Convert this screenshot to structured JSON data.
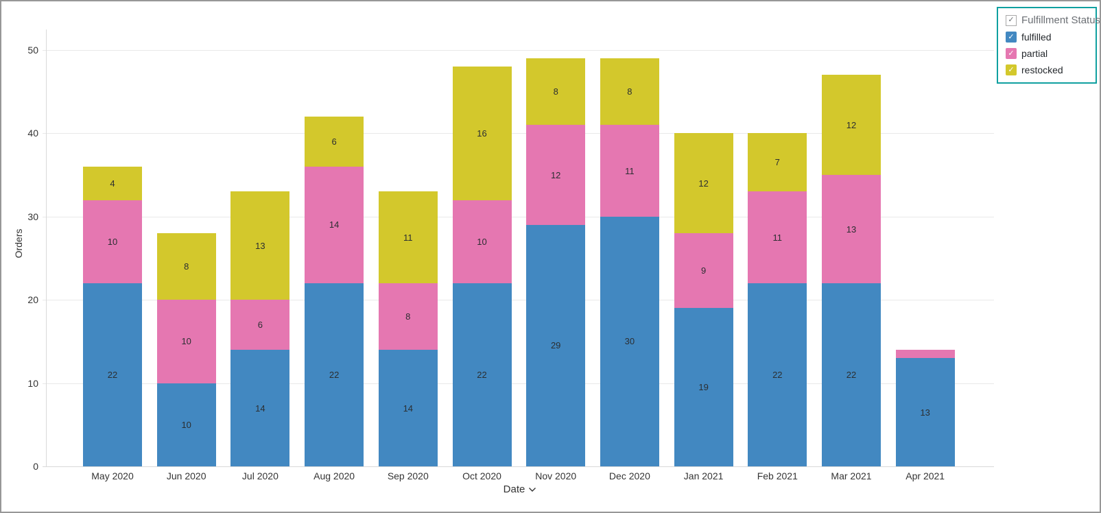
{
  "legend": {
    "title": "Fulfillment Status",
    "checkmark": "✓",
    "border_color": "#0fa0a0",
    "items": [
      {
        "label": "fulfilled",
        "color": "#4288c1"
      },
      {
        "label": "partial",
        "color": "#e577b1"
      },
      {
        "label": "restocked",
        "color": "#d3c82c"
      }
    ]
  },
  "chart_data": {
    "type": "bar",
    "stacked": true,
    "title": "",
    "xlabel": "Date",
    "ylabel": "Orders",
    "ylim": [
      0,
      50
    ],
    "ytick_step": 10,
    "grid": true,
    "legend_position": "top-right",
    "categories": [
      "May 2020",
      "Jun 2020",
      "Jul 2020",
      "Aug 2020",
      "Sep 2020",
      "Oct 2020",
      "Nov 2020",
      "Dec 2020",
      "Jan 2021",
      "Feb 2021",
      "Mar 2021",
      "Apr 2021"
    ],
    "series": [
      {
        "name": "fulfilled",
        "color": "#4288c1",
        "values": [
          22,
          10,
          14,
          22,
          14,
          22,
          29,
          30,
          19,
          22,
          22,
          13
        ]
      },
      {
        "name": "partial",
        "color": "#e577b1",
        "values": [
          10,
          10,
          6,
          14,
          8,
          10,
          12,
          11,
          9,
          11,
          13,
          1
        ]
      },
      {
        "name": "restocked",
        "color": "#d3c82c",
        "values": [
          4,
          8,
          13,
          6,
          11,
          16,
          8,
          8,
          12,
          7,
          12,
          0
        ]
      }
    ]
  }
}
